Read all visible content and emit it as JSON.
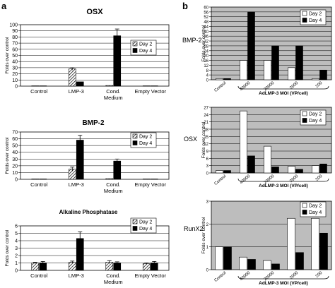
{
  "panel_labels": {
    "a": "a",
    "b": "b"
  },
  "colors": {
    "grid": "#000000",
    "panel_b_bg": "#bdbdbd",
    "day2": "#ffffff",
    "day4": "#000000"
  },
  "chart_data": [
    {
      "id": "osx_a",
      "type": "bar",
      "title": "OSX",
      "ylabel": "Folds over control",
      "xlabel": "",
      "ylim": [
        0,
        100
      ],
      "yticks": [
        0,
        10,
        20,
        30,
        40,
        50,
        60,
        70,
        80,
        90,
        100
      ],
      "categories": [
        [
          "Control"
        ],
        [
          "LMP-3"
        ],
        [
          "Cond.",
          "Medium"
        ],
        [
          "Empty Vector"
        ]
      ],
      "series": [
        {
          "name": "Day 2",
          "style": "hatch",
          "values": [
            0.5,
            28,
            1,
            0.5
          ],
          "errors": [
            0,
            2,
            0,
            0
          ]
        },
        {
          "name": "Day 4",
          "style": "solid",
          "values": [
            0.5,
            7,
            82,
            0.5
          ],
          "errors": [
            0,
            0,
            11,
            0
          ]
        }
      ],
      "legend": "top-right",
      "grid": true
    },
    {
      "id": "bmp2_a",
      "type": "bar",
      "title": "BMP-2",
      "ylabel": "Folds over control",
      "xlabel": "",
      "ylim": [
        0,
        70
      ],
      "yticks": [
        0,
        10,
        20,
        30,
        40,
        50,
        60,
        70
      ],
      "categories": [
        [
          "Control"
        ],
        [
          "LMP-3"
        ],
        [
          "Cond.",
          "Medium"
        ],
        [
          "Empty Vector"
        ]
      ],
      "series": [
        {
          "name": "Day 2",
          "style": "hatch",
          "values": [
            0.5,
            15,
            1,
            0.5
          ],
          "errors": [
            0,
            3,
            0,
            0
          ]
        },
        {
          "name": "Day 4",
          "style": "solid",
          "values": [
            0.5,
            58,
            27,
            0.5
          ],
          "errors": [
            0,
            7,
            3,
            0
          ]
        }
      ],
      "legend": "top-right",
      "grid": true
    },
    {
      "id": "alp_a",
      "type": "bar",
      "title": "Alkaline Phosphatase",
      "ylabel": "Folds over control",
      "xlabel": "",
      "ylim": [
        0,
        6
      ],
      "yticks": [
        0,
        1,
        2,
        3,
        4,
        5,
        6
      ],
      "categories": [
        [
          "Control"
        ],
        [
          "LMP-3"
        ],
        [
          "Cond.",
          "Medium"
        ],
        [
          "Empty Vector"
        ]
      ],
      "series": [
        {
          "name": "Day 2",
          "style": "hatch",
          "values": [
            1.0,
            1.1,
            1.1,
            0.9
          ],
          "errors": [
            0.1,
            0.15,
            0.2,
            0.1
          ]
        },
        {
          "name": "Day 4",
          "style": "solid",
          "values": [
            1.0,
            4.3,
            1.0,
            1.0
          ],
          "errors": [
            0.2,
            0.9,
            0.15,
            0.2
          ]
        }
      ],
      "legend": "top-right",
      "grid": true
    },
    {
      "id": "bmp2_b",
      "type": "bar",
      "title": "BMP-2",
      "ylabel": "Folds over control",
      "xlabel": "AdLMP-3 MOI (VP/cell)",
      "ylim": [
        0,
        60
      ],
      "yticks": [
        0,
        4,
        8,
        12,
        16,
        20,
        24,
        28,
        32,
        36,
        40,
        44,
        48,
        52,
        56,
        60
      ],
      "categories": [
        "Control",
        "40000",
        "20000",
        "2000",
        "200"
      ],
      "series": [
        {
          "name": "Day 2",
          "style": "open",
          "values": [
            1,
            16,
            16,
            10,
            1
          ]
        },
        {
          "name": "Day 4",
          "style": "solid",
          "values": [
            1,
            56,
            28,
            28,
            8
          ]
        }
      ],
      "legend": "top-right",
      "grid": true
    },
    {
      "id": "osx_b",
      "type": "bar",
      "title": "OSX",
      "ylabel": "Folds over control",
      "xlabel": "AdLMP-3 MOI (VP/cell)",
      "ylim": [
        0,
        27
      ],
      "yticks": [
        0,
        3,
        6,
        9,
        12,
        15,
        18,
        21,
        24,
        27
      ],
      "categories": [
        "Control",
        "40000",
        "20000",
        "2000",
        "200"
      ],
      "series": [
        {
          "name": "Day 2",
          "style": "open",
          "values": [
            1,
            25.5,
            11,
            2.8,
            3
          ]
        },
        {
          "name": "Day 4",
          "style": "solid",
          "values": [
            1,
            7,
            2.5,
            1.5,
            3.7
          ]
        }
      ],
      "legend": "top-right",
      "grid": true
    },
    {
      "id": "runx2_b",
      "type": "bar",
      "title": "RunX2",
      "ylabel": "Folds over control",
      "xlabel": "AdLMP-3 MOI (VP/cell)",
      "ylim": [
        0,
        3
      ],
      "yticks": [
        0,
        1,
        2,
        3
      ],
      "categories": [
        "Control",
        "40000",
        "20000",
        "2000",
        "200"
      ],
      "series": [
        {
          "name": "Day 2",
          "style": "open",
          "values": [
            1,
            0.55,
            0.4,
            2.25,
            2.25
          ]
        },
        {
          "name": "Day 4",
          "style": "solid",
          "values": [
            1,
            0.45,
            0.25,
            0.75,
            1.6
          ]
        }
      ],
      "legend": "top-right",
      "grid": true
    }
  ]
}
